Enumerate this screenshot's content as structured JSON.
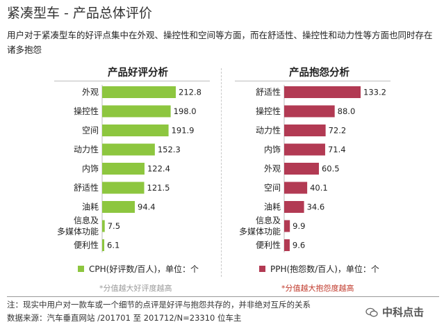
{
  "header": {
    "title": "紧凑型车 - 产品总体评价",
    "description": "用户对于紧凑型车的好评点集中在外观、操控性和空间等方面，而在舒适性、操控性和动力性等方面也同时存在诸多抱怨"
  },
  "colors": {
    "good": "#8dc63f",
    "bad": "#b23a53",
    "hint_good": "#9a9a9a",
    "hint_bad": "#c0392b"
  },
  "chart_data": [
    {
      "type": "bar",
      "title": "产品好评分析",
      "categories": [
        "外观",
        "操控性",
        "空间",
        "动力性",
        "内饰",
        "舒适性",
        "油耗",
        "信息及\n多媒体功能",
        "便利性"
      ],
      "series": [
        {
          "name": "CPH(好评数/百人)，单位：个",
          "values": [
            212.8,
            198.0,
            191.9,
            152.3,
            122.4,
            121.5,
            94.4,
            7.5,
            6.1
          ]
        }
      ],
      "xlim": [
        0,
        212.8
      ],
      "grid": false,
      "legend": "bottom",
      "note": "*分值越大好评度越高"
    },
    {
      "type": "bar",
      "title": "产品抱怨分析",
      "categories": [
        "舒适性",
        "操控性",
        "动力性",
        "内饰",
        "外观",
        "空间",
        "油耗",
        "信息及\n多媒体功能",
        "便利性"
      ],
      "series": [
        {
          "name": "PPH(抱怨数/百人)，单位：个",
          "values": [
            133.2,
            88.0,
            72.2,
            71.4,
            60.5,
            40.1,
            34.6,
            9.9,
            9.6
          ]
        }
      ],
      "xlim": [
        0,
        133.2
      ],
      "grid": false,
      "legend": "bottom",
      "note": "*分值越大抱怨度越高"
    }
  ],
  "footer": {
    "note": "注：现实中用户对一款车或一个细节的点评是好评与抱怨共存的，并非绝对互斥的关系",
    "source": "数据来源：汽车垂直网站 /201701 至 201712/N=23310 位车主"
  },
  "watermark": {
    "text": "中科点击",
    "icon": "chat-bubble-icon"
  }
}
